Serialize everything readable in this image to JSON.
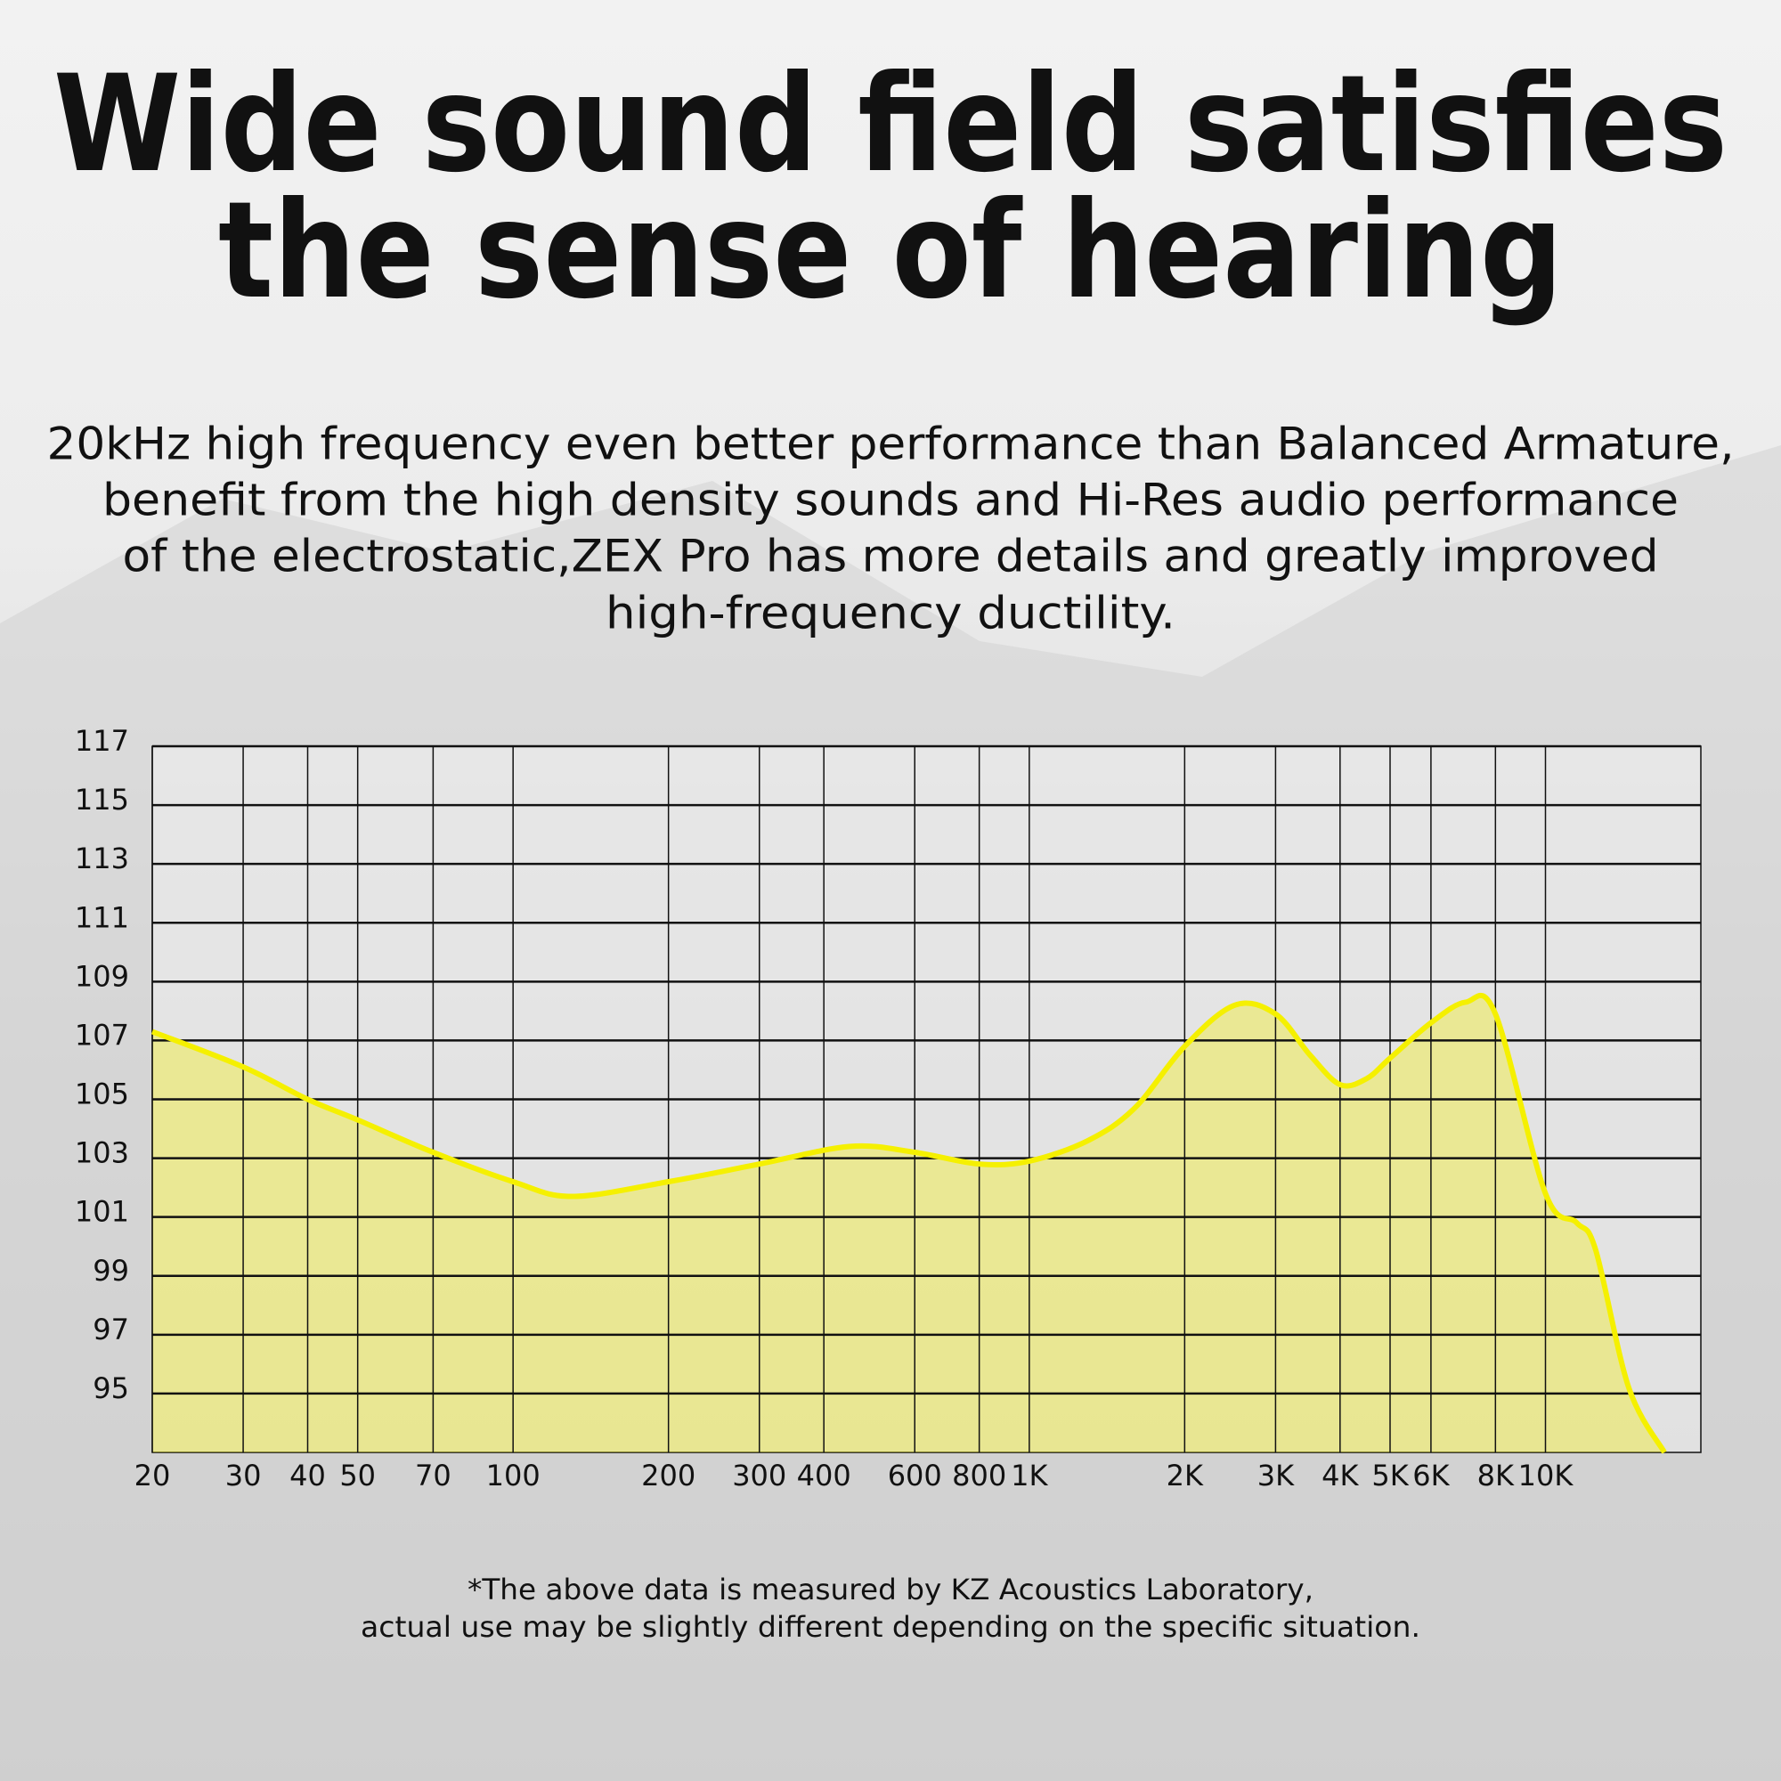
{
  "chart_data": {
    "type": "area",
    "title": [
      "Wide sound field satisfies",
      "the sense of hearing"
    ],
    "subtitle": [
      "20kHz high frequency even better performance than Balanced Armature,",
      "benefit from the high density sounds and Hi-Res audio performance",
      "of the electrostatic,ZEX Pro has more details and greatly improved",
      "high-frequency ductility."
    ],
    "footnote": [
      "*The above data is measured by KZ Acoustics Laboratory,",
      "actual use may be slightly different depending on the specific situation."
    ],
    "x": [
      20,
      30,
      40,
      50,
      70,
      100,
      130,
      200,
      300,
      450,
      600,
      800,
      1000,
      1300,
      1600,
      2000,
      2500,
      3000,
      3500,
      4000,
      4500,
      5000,
      6000,
      7000,
      8000,
      10000,
      11500,
      12500,
      14500,
      17000
    ],
    "values": [
      107.3,
      106.1,
      105.0,
      104.3,
      103.2,
      102.2,
      101.7,
      102.2,
      102.8,
      103.4,
      103.2,
      102.8,
      102.9,
      103.6,
      104.7,
      106.8,
      108.2,
      107.9,
      106.5,
      105.5,
      105.7,
      106.4,
      107.6,
      108.3,
      107.9,
      101.8,
      100.8,
      99.9,
      95.2,
      93
    ],
    "color": "#f5f000",
    "xscale": "log",
    "xlim": [
      20,
      20000
    ],
    "ylim": [
      93,
      117
    ],
    "xticks": [
      20,
      30,
      40,
      50,
      70,
      100,
      200,
      300,
      400,
      600,
      800,
      {
        "value": 1000,
        "label": "1K"
      },
      {
        "value": 2000,
        "label": "2K"
      },
      {
        "value": 3000,
        "label": "3K"
      },
      {
        "value": 4000,
        "label": "4K"
      },
      {
        "value": 5000,
        "label": "5K"
      },
      {
        "value": 6000,
        "label": "6K"
      },
      {
        "value": 8000,
        "label": "8K"
      },
      {
        "value": 10000,
        "label": "10K"
      }
    ],
    "yticks": [
      95,
      97,
      99,
      101,
      103,
      105,
      107,
      109,
      111,
      113,
      115,
      117
    ],
    "grid": true
  }
}
